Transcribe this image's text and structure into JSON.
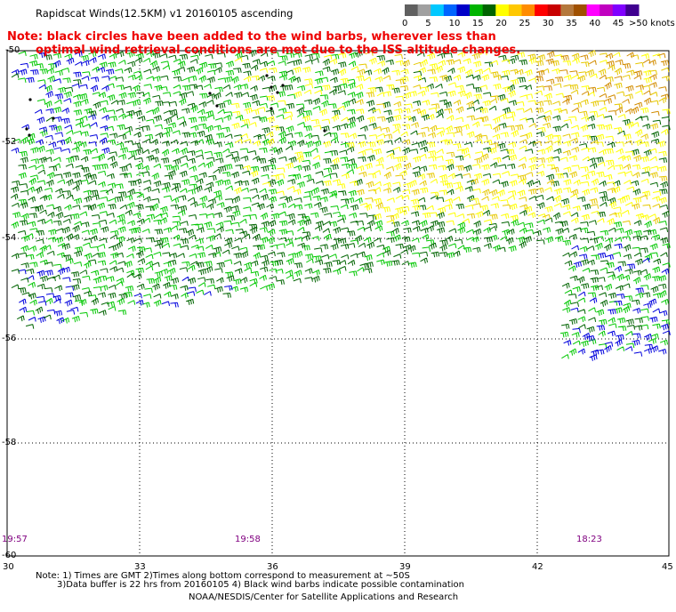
{
  "title": "Rapidscat Winds(12.5KM) v1 20160105 ascending",
  "note_line1": "Note: black circles have been added to the wind barbs, wherever less than",
  "note_line2": "optimal wind retrieval conditions are met due to the ISS altitude changes.",
  "colorbar": {
    "labels": [
      "0",
      "5",
      "10",
      "15",
      "20",
      "25",
      "30",
      "35",
      "40",
      "45",
      ">50 knots"
    ],
    "colors": [
      "#606060",
      "#a0a0a0",
      "#00c8ff",
      "#0064ff",
      "#0000c8",
      "#00b400",
      "#006400",
      "#ffff00",
      "#ffc800",
      "#ff8c00",
      "#ff0000",
      "#c80000",
      "#b4783c",
      "#a05000",
      "#ff00ff",
      "#c000c0",
      "#8000ff",
      "#400090"
    ]
  },
  "lat_labels": [
    "-50",
    "-52",
    "-54",
    "-56",
    "-58",
    "-60"
  ],
  "lon_labels": [
    "30",
    "33",
    "36",
    "39",
    "42",
    "45"
  ],
  "time_labels": [
    "19:57",
    "19:58",
    "18:23"
  ],
  "footer": {
    "line1": "Note: 1) Times are GMT 2)Times along bottom correspond to measurement at ~50S",
    "line2": "3)Data buffer is 22 hrs from 20160105 4) Black wind barbs indicate possible contamination",
    "line3": "NOAA/NESDIS/Center for Satellite Applications and Research"
  },
  "legend_colors": {
    "blue": "#0000dd",
    "green": "#00c800",
    "dark_green": "#006400",
    "yellow": "#ffff00",
    "gold": "#e6c800",
    "orange": "#d28c00",
    "red_note": "#ee0000",
    "time_purple": "#800080"
  }
}
